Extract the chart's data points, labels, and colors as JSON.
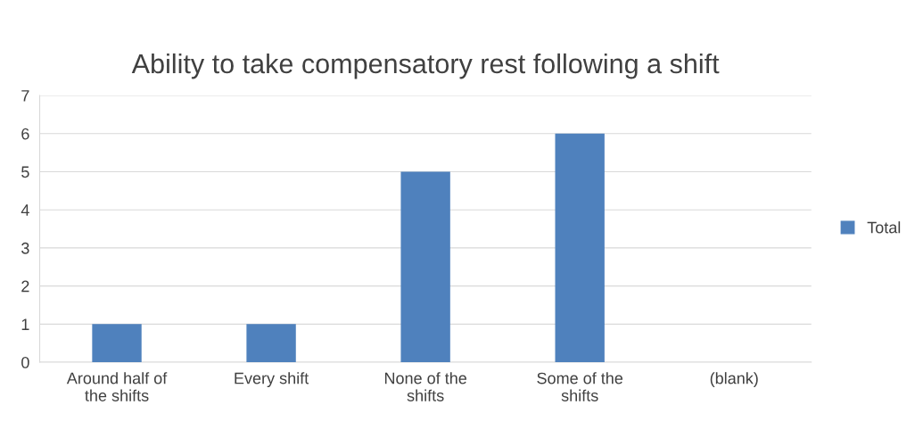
{
  "chart_data": {
    "type": "bar",
    "title": "Ability to take compensatory rest following a shift",
    "categories": [
      "Around half of\nthe shifts",
      "Every shift",
      "None of the\nshifts",
      "Some of the\nshifts",
      "(blank)"
    ],
    "series": [
      {
        "name": "Total",
        "color": "#4f81bd",
        "values": [
          1,
          1,
          5,
          6,
          null
        ]
      }
    ],
    "ylim": [
      0,
      7
    ],
    "yticks": [
      0,
      1,
      2,
      3,
      4,
      5,
      6,
      7
    ],
    "grid": "y",
    "legend": "right"
  }
}
